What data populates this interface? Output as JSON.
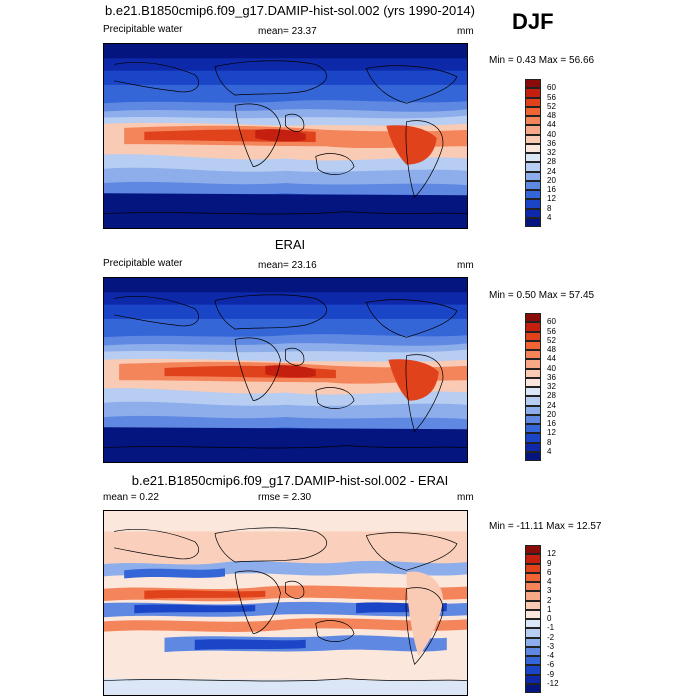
{
  "season": "DJF",
  "panels": [
    {
      "title": "b.e21.B1850cmip6.f09_g17.DAMIP-hist-sol.002 (yrs 1990-2014)",
      "left": "Precipitable water",
      "center": "mean=  23.37",
      "units": "mm",
      "range": "Min =   0.43 Max =  56.66",
      "colorbar": {
        "labels": [
          "60",
          "56",
          "52",
          "48",
          "44",
          "40",
          "36",
          "32",
          "28",
          "24",
          "20",
          "16",
          "12",
          "8",
          "4"
        ],
        "colors": [
          "#8a0c0a",
          "#c51f0f",
          "#e0421c",
          "#ef6432",
          "#f4855a",
          "#f7a886",
          "#facbb4",
          "#fbe7dc",
          "#dbe6f7",
          "#b7cdf2",
          "#8eaeeb",
          "#5f88e2",
          "#3566d8",
          "#1a45c6",
          "#0d28a8",
          "#04157f"
        ]
      }
    },
    {
      "title": "ERAI",
      "left": "Precipitable water",
      "center": "mean=  23.16",
      "units": "mm",
      "range": "Min =   0.50 Max =  57.45",
      "colorbar": {
        "labels": [
          "60",
          "56",
          "52",
          "48",
          "44",
          "40",
          "36",
          "32",
          "28",
          "24",
          "20",
          "16",
          "12",
          "8",
          "4"
        ],
        "colors": [
          "#8a0c0a",
          "#c51f0f",
          "#e0421c",
          "#ef6432",
          "#f4855a",
          "#f7a886",
          "#facbb4",
          "#fbe7dc",
          "#dbe6f7",
          "#b7cdf2",
          "#8eaeeb",
          "#5f88e2",
          "#3566d8",
          "#1a45c6",
          "#0d28a8",
          "#04157f"
        ]
      }
    },
    {
      "title": "b.e21.B1850cmip6.f09_g17.DAMIP-hist-sol.002 - ERAI",
      "left": "mean =   0.22",
      "center": "rmse =   2.30",
      "units": "mm",
      "range": "Min = -11.11 Max =  12.57",
      "colorbar": {
        "labels": [
          "12",
          "9",
          "6",
          "4",
          "3",
          "2",
          "1",
          "0",
          "-1",
          "-2",
          "-3",
          "-4",
          "-6",
          "-9",
          "-12"
        ],
        "colors": [
          "#8a0c0a",
          "#c51f0f",
          "#e0421c",
          "#ef6432",
          "#f4855a",
          "#f7a886",
          "#facbb4",
          "#fbe7dc",
          "#dbe6f7",
          "#b7cdf2",
          "#8eaeeb",
          "#5f88e2",
          "#3566d8",
          "#1a45c6",
          "#0d28a8",
          "#04157f"
        ]
      }
    }
  ]
}
